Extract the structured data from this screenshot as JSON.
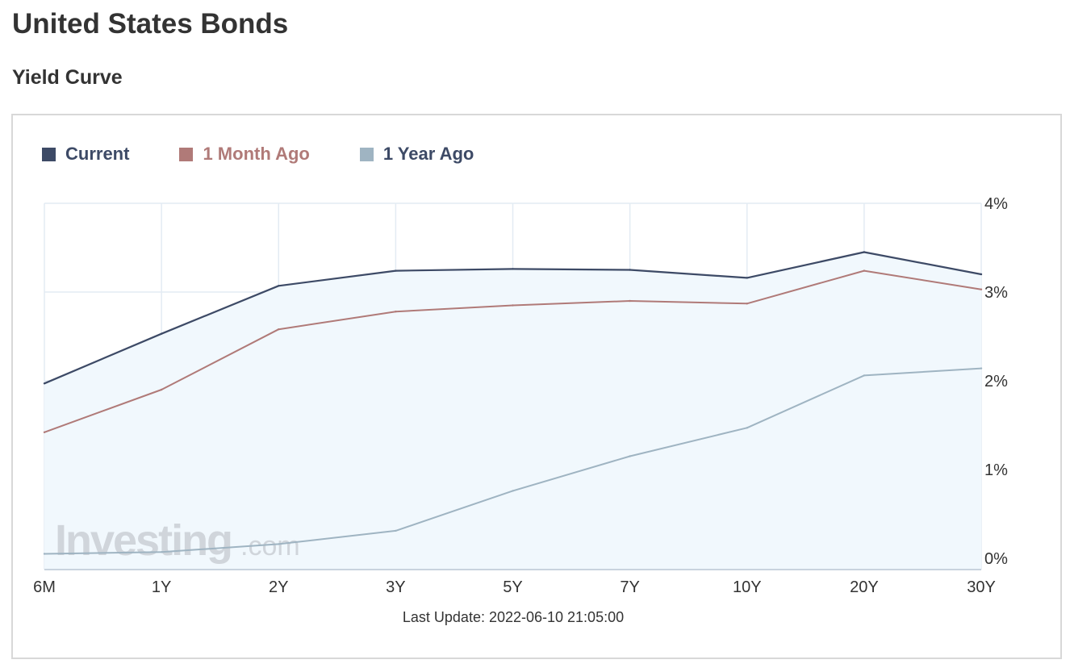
{
  "page": {
    "title": "United States Bonds",
    "section_title": "Yield Curve",
    "last_update": "Last Update: 2022-06-10 21:05:00",
    "watermark": {
      "main": "Investing",
      "suffix": ".com"
    }
  },
  "colors": {
    "current": "#3d4a66",
    "month_ago": "#b07a78",
    "year_ago": "#9fb4c2",
    "area_fill": "#f1f8fd",
    "grid": "#e3ebf3"
  },
  "chart_data": {
    "type": "line",
    "categories": [
      "6M",
      "1Y",
      "2Y",
      "3Y",
      "5Y",
      "7Y",
      "10Y",
      "20Y",
      "30Y"
    ],
    "ylim": [
      0,
      4
    ],
    "yticks": [
      0,
      1,
      2,
      3,
      4
    ],
    "ytick_labels": [
      "0%",
      "1%",
      "2%",
      "3%",
      "4%"
    ],
    "y_axis_position": "right",
    "legend_position": "top-left",
    "grid": true,
    "series": [
      {
        "name": "Current",
        "color": "#3d4a66",
        "values": [
          1.97,
          2.53,
          3.07,
          3.24,
          3.26,
          3.25,
          3.16,
          3.45,
          3.2
        ],
        "filled": true
      },
      {
        "name": "1 Month Ago",
        "color": "#b07a78",
        "values": [
          1.42,
          1.9,
          2.58,
          2.78,
          2.85,
          2.9,
          2.87,
          3.24,
          3.03
        ]
      },
      {
        "name": "1 Year Ago",
        "color": "#9fb4c2",
        "values": [
          0.05,
          0.07,
          0.16,
          0.31,
          0.76,
          1.15,
          1.47,
          2.06,
          2.14
        ]
      }
    ]
  }
}
